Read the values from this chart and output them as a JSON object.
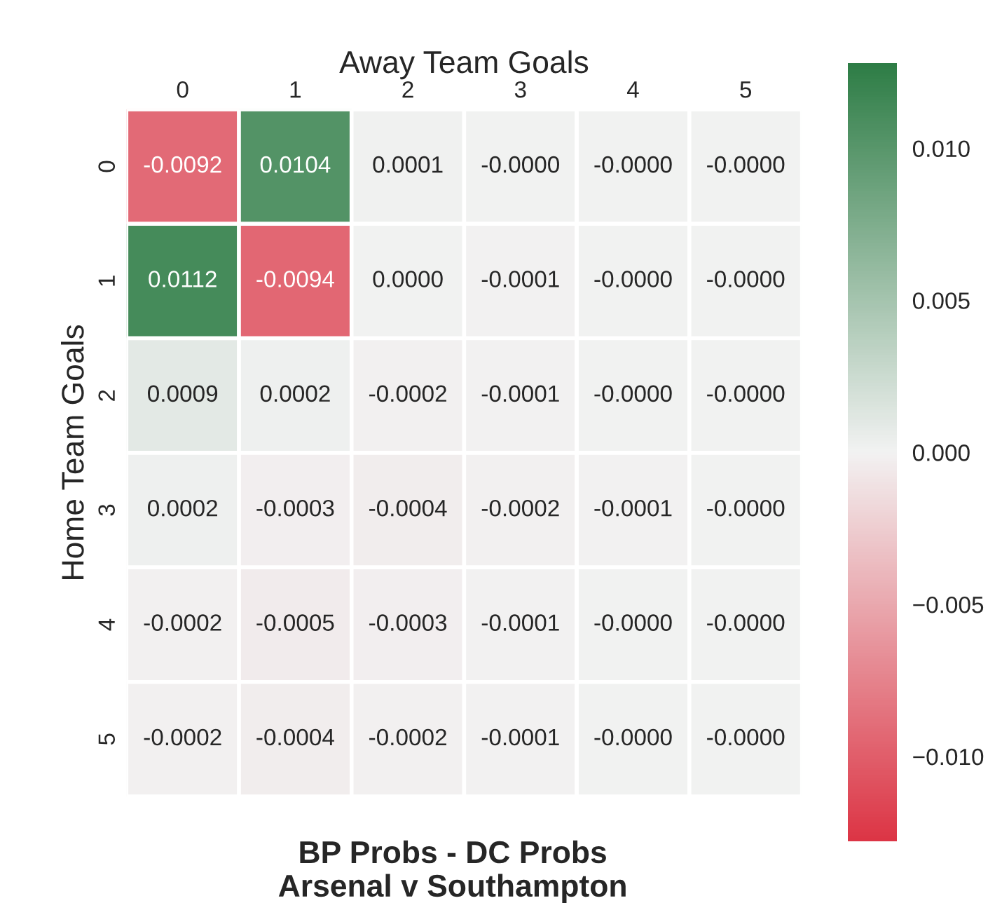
{
  "chart_data": {
    "type": "heatmap",
    "title": "BP Probs - DC Probs\nArsenal v Southampton",
    "xlabel": "Away Team Goals",
    "ylabel": "Home Team Goals",
    "categories": [
      "0",
      "1",
      "2",
      "3",
      "4",
      "5"
    ],
    "y_categories": [
      "0",
      "1",
      "2",
      "3",
      "4",
      "5"
    ],
    "cells": [
      [
        -0.0092,
        0.0104,
        0.0001,
        -0.0,
        -0.0,
        -0.0
      ],
      [
        0.0112,
        -0.0094,
        0.0,
        -0.0001,
        -0.0,
        -0.0
      ],
      [
        0.0009,
        0.0002,
        -0.0002,
        -0.0001,
        -0.0,
        -0.0
      ],
      [
        0.0002,
        -0.0003,
        -0.0004,
        -0.0002,
        -0.0001,
        -0.0
      ],
      [
        -0.0002,
        -0.0005,
        -0.0003,
        -0.0001,
        -0.0,
        -0.0
      ],
      [
        -0.0002,
        -0.0004,
        -0.0002,
        -0.0001,
        -0.0,
        -0.0
      ]
    ],
    "cell_labels": [
      [
        "-0.0092",
        "0.0104",
        "0.0001",
        "-0.0000",
        "-0.0000",
        "-0.0000"
      ],
      [
        "0.0112",
        "-0.0094",
        "0.0000",
        "-0.0001",
        "-0.0000",
        "-0.0000"
      ],
      [
        "0.0009",
        "0.0002",
        "-0.0002",
        "-0.0001",
        "-0.0000",
        "-0.0000"
      ],
      [
        "0.0002",
        "-0.0003",
        "-0.0004",
        "-0.0002",
        "-0.0001",
        "-0.0000"
      ],
      [
        "-0.0002",
        "-0.0005",
        "-0.0003",
        "-0.0001",
        "-0.0000",
        "-0.0000"
      ],
      [
        "-0.0002",
        "-0.0004",
        "-0.0002",
        "-0.0001",
        "-0.0000",
        "-0.0000"
      ]
    ],
    "clim": [
      -0.0128,
      0.0128
    ],
    "cticks": [
      {
        "value": -0.01,
        "label": "−0.010"
      },
      {
        "value": -0.005,
        "label": "−0.005"
      },
      {
        "value": 0,
        "label": "0.000"
      },
      {
        "value": 0.005,
        "label": "0.005"
      },
      {
        "value": 0.01,
        "label": "0.010"
      }
    ]
  }
}
